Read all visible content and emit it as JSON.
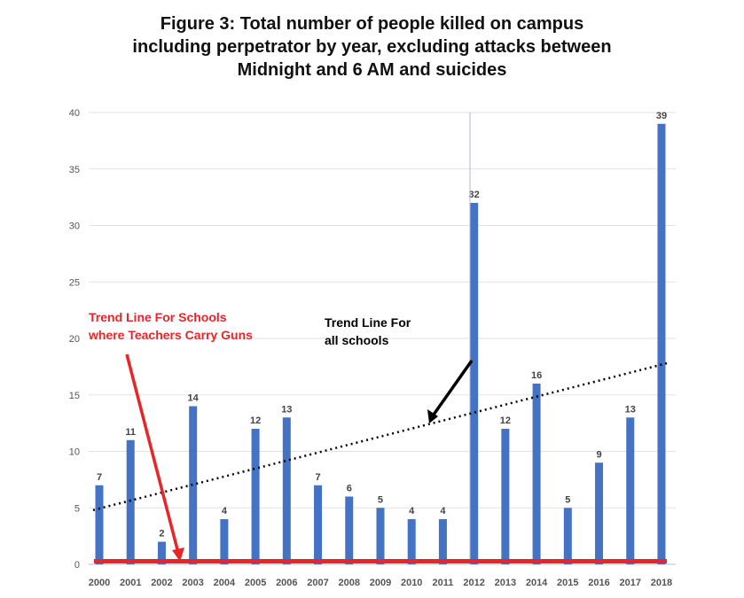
{
  "chart_data": {
    "type": "bar",
    "title_lines": [
      "Figure 3: Total number of people killed on campus",
      "including perpetrator by year, excluding attacks between",
      "Midnight and 6 AM and suicides"
    ],
    "categories": [
      "2000",
      "2001",
      "2002",
      "2003",
      "2004",
      "2005",
      "2006",
      "2007",
      "2008",
      "2009",
      "2010",
      "2011",
      "2012",
      "2013",
      "2014",
      "2015",
      "2016",
      "2017",
      "2018"
    ],
    "values": [
      7,
      11,
      2,
      14,
      4,
      12,
      13,
      7,
      6,
      5,
      4,
      4,
      32,
      12,
      16,
      5,
      9,
      13,
      39
    ],
    "ylim": [
      0,
      40
    ],
    "yticks": [
      0,
      5,
      10,
      15,
      20,
      25,
      30,
      35,
      40
    ],
    "grid": true,
    "data_labels": true,
    "bar_color": "#4472C4",
    "trend_all_schools": {
      "start": 4.8,
      "end": 17.8,
      "style": "dotted",
      "color": "#000000"
    },
    "trend_teachers_carry_guns": {
      "start": 0.2,
      "end": 0.2,
      "color": "#E8262A"
    },
    "annotations": [
      {
        "lines": [
          "Trend Line For Schools",
          "where Teachers Carry Guns"
        ],
        "color": "#E8262A"
      },
      {
        "lines": [
          "Trend Line For",
          "all schools"
        ],
        "color": "#000000"
      }
    ]
  }
}
